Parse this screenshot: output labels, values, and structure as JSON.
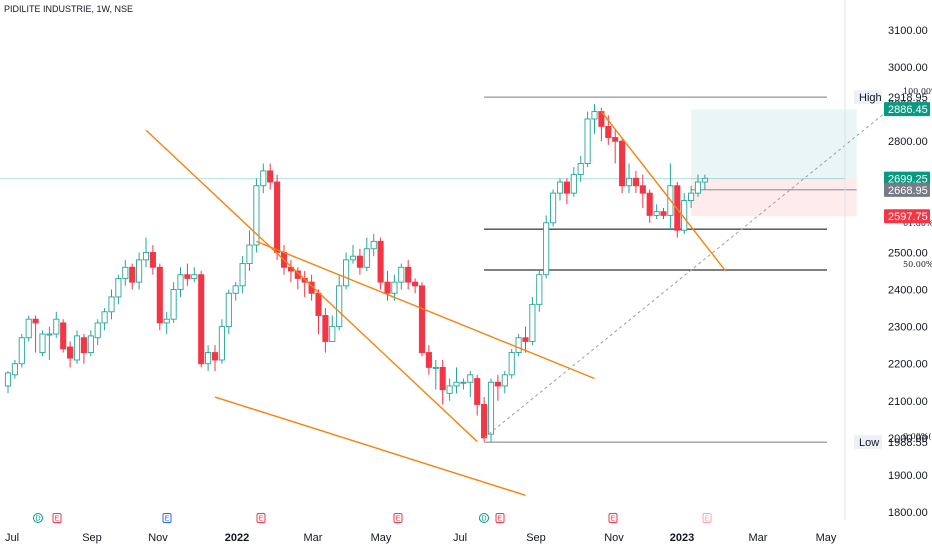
{
  "header": {
    "title": "PIDILITE INDUSTRIE, 1W, NSE"
  },
  "chart_data": {
    "type": "candlestick",
    "symbol": "PIDILITE INDUSTRIE",
    "timeframe": "1W",
    "exchange": "NSE",
    "x_tick_labels": [
      "Jul",
      "Sep",
      "Nov",
      "2022",
      "Mar",
      "May",
      "Jul",
      "Sep",
      "Nov",
      "2023",
      "Mar",
      "May"
    ],
    "y_tick_labels": [
      "3100.00",
      "3000.00",
      "2900.00",
      "2800.00",
      "2700.00",
      "2600.00",
      "2500.00",
      "2400.00",
      "2300.00",
      "2200.00",
      "2100.00",
      "2000.00",
      "1900.00",
      "1800.00"
    ],
    "ylim": [
      1780,
      3130
    ],
    "candles": [
      [
        2140,
        2175,
        2120,
        2180
      ],
      [
        2170,
        2200,
        2160,
        2210
      ],
      [
        2200,
        2270,
        2190,
        2280
      ],
      [
        2270,
        2320,
        2260,
        2330
      ],
      [
        2320,
        2310,
        2230,
        2330
      ],
      [
        2230,
        2280,
        2220,
        2290
      ],
      [
        2280,
        2280,
        2210,
        2300
      ],
      [
        2280,
        2320,
        2270,
        2340
      ],
      [
        2310,
        2240,
        2230,
        2320
      ],
      [
        2245,
        2215,
        2190,
        2260
      ],
      [
        2210,
        2275,
        2200,
        2290
      ],
      [
        2270,
        2230,
        2200,
        2280
      ],
      [
        2230,
        2275,
        2220,
        2290
      ],
      [
        2270,
        2310,
        2250,
        2320
      ],
      [
        2310,
        2340,
        2290,
        2350
      ],
      [
        2340,
        2380,
        2320,
        2400
      ],
      [
        2380,
        2430,
        2360,
        2440
      ],
      [
        2430,
        2460,
        2410,
        2480
      ],
      [
        2460,
        2420,
        2400,
        2470
      ],
      [
        2420,
        2480,
        2400,
        2500
      ],
      [
        2480,
        2500,
        2460,
        2540
      ],
      [
        2500,
        2460,
        2440,
        2520
      ],
      [
        2460,
        2310,
        2290,
        2470
      ],
      [
        2310,
        2320,
        2280,
        2340
      ],
      [
        2320,
        2400,
        2310,
        2420
      ],
      [
        2400,
        2440,
        2380,
        2460
      ],
      [
        2440,
        2430,
        2410,
        2470
      ],
      [
        2430,
        2440,
        2420,
        2460
      ],
      [
        2440,
        2200,
        2190,
        2450
      ],
      [
        2200,
        2230,
        2180,
        2250
      ],
      [
        2230,
        2210,
        2180,
        2250
      ],
      [
        2210,
        2300,
        2200,
        2320
      ],
      [
        2300,
        2390,
        2280,
        2400
      ],
      [
        2390,
        2410,
        2370,
        2420
      ],
      [
        2410,
        2470,
        2390,
        2490
      ],
      [
        2470,
        2520,
        2450,
        2560
      ],
      [
        2520,
        2680,
        2500,
        2700
      ],
      [
        2680,
        2720,
        2660,
        2740
      ],
      [
        2720,
        2690,
        2670,
        2740
      ],
      [
        2690,
        2500,
        2480,
        2710
      ],
      [
        2500,
        2460,
        2440,
        2520
      ],
      [
        2460,
        2450,
        2420,
        2480
      ],
      [
        2450,
        2430,
        2400,
        2460
      ],
      [
        2430,
        2420,
        2380,
        2450
      ],
      [
        2420,
        2390,
        2370,
        2440
      ],
      [
        2390,
        2330,
        2280,
        2400
      ],
      [
        2330,
        2260,
        2230,
        2350
      ],
      [
        2260,
        2300,
        2260,
        2330
      ],
      [
        2300,
        2410,
        2290,
        2440
      ],
      [
        2410,
        2480,
        2400,
        2500
      ],
      [
        2480,
        2490,
        2470,
        2520
      ],
      [
        2490,
        2460,
        2440,
        2510
      ],
      [
        2460,
        2510,
        2450,
        2540
      ],
      [
        2510,
        2530,
        2490,
        2550
      ],
      [
        2530,
        2420,
        2400,
        2540
      ],
      [
        2420,
        2390,
        2370,
        2450
      ],
      [
        2390,
        2420,
        2370,
        2440
      ],
      [
        2420,
        2460,
        2400,
        2470
      ],
      [
        2460,
        2420,
        2400,
        2480
      ],
      [
        2420,
        2410,
        2390,
        2430
      ],
      [
        2410,
        2230,
        2220,
        2420
      ],
      [
        2230,
        2190,
        2170,
        2250
      ],
      [
        2190,
        2190,
        2130,
        2210
      ],
      [
        2190,
        2130,
        2090,
        2210
      ],
      [
        2120,
        2140,
        2100,
        2160
      ],
      [
        2140,
        2150,
        2120,
        2190
      ],
      [
        2150,
        2150,
        2130,
        2160
      ],
      [
        2150,
        2170,
        2110,
        2180
      ],
      [
        2160,
        2090,
        2060,
        2170
      ],
      [
        2090,
        2000,
        1990,
        2110
      ],
      [
        2010,
        2150,
        1990,
        2160
      ],
      [
        2150,
        2140,
        2100,
        2170
      ],
      [
        2140,
        2170,
        2120,
        2180
      ],
      [
        2170,
        2230,
        2160,
        2240
      ],
      [
        2230,
        2270,
        2220,
        2280
      ],
      [
        2270,
        2260,
        2230,
        2300
      ],
      [
        2260,
        2360,
        2250,
        2380
      ],
      [
        2360,
        2440,
        2340,
        2450
      ],
      [
        2440,
        2580,
        2430,
        2600
      ],
      [
        2580,
        2660,
        2570,
        2670
      ],
      [
        2660,
        2690,
        2640,
        2700
      ],
      [
        2690,
        2660,
        2630,
        2700
      ],
      [
        2660,
        2710,
        2650,
        2730
      ],
      [
        2710,
        2740,
        2690,
        2760
      ],
      [
        2740,
        2860,
        2730,
        2880
      ],
      [
        2860,
        2880,
        2820,
        2900
      ],
      [
        2880,
        2840,
        2800,
        2890
      ],
      [
        2840,
        2810,
        2790,
        2870
      ],
      [
        2810,
        2800,
        2740,
        2830
      ],
      [
        2800,
        2680,
        2660,
        2810
      ],
      [
        2680,
        2700,
        2660,
        2740
      ],
      [
        2700,
        2680,
        2660,
        2720
      ],
      [
        2680,
        2660,
        2620,
        2710
      ],
      [
        2660,
        2600,
        2580,
        2670
      ],
      [
        2600,
        2610,
        2590,
        2630
      ],
      [
        2610,
        2600,
        2590,
        2620
      ],
      [
        2600,
        2680,
        2560,
        2740
      ],
      [
        2680,
        2560,
        2540,
        2690
      ],
      [
        2560,
        2640,
        2550,
        2660
      ],
      [
        2640,
        2660,
        2620,
        2680
      ],
      [
        2660,
        2690,
        2650,
        2710
      ],
      [
        2690,
        2700,
        2670,
        2710
      ]
    ],
    "trendlines": [
      {
        "from": [
          20,
          2830
        ],
        "to": [
          68,
          1990
        ],
        "color": "#f7820f"
      },
      {
        "from": [
          36,
          2530
        ],
        "to": [
          85,
          2160
        ],
        "color": "#f7820f"
      },
      {
        "from": [
          86,
          2880
        ],
        "to": [
          104,
          2450
        ],
        "color": "#f7820f"
      },
      {
        "from": [
          30,
          2110
        ],
        "to": [
          75,
          1845
        ],
        "color": "#f7820f"
      },
      {
        "from": [
          69,
          2000
        ],
        "to": [
          130,
          2920
        ],
        "color": "#9aa0a6",
        "dashed": true
      }
    ],
    "fib_levels": [
      {
        "label": "100.00%(2918.95)",
        "value": 2918.95
      },
      {
        "label": "61.80%(2563.10)",
        "value": 2563.1
      },
      {
        "label": "50.00%(2452.60)",
        "value": 2452.6
      },
      {
        "label": "0.00%(1988.55)",
        "value": 1988.55
      }
    ],
    "fib_range_bars": [
      69,
      130
    ],
    "position": {
      "target_zone": {
        "from": 2699.25,
        "to": 2886.45,
        "color": "#26a69a"
      },
      "stop_zone": {
        "from": 2597.75,
        "to": 2699.25,
        "color": "#f23645"
      },
      "bars": [
        99,
        123
      ]
    },
    "price_badges": [
      {
        "label": "High",
        "value": "2918.95",
        "price": 2918.95,
        "style": "label"
      },
      {
        "value": "2886.45",
        "price": 2886.45,
        "bg": "#089981",
        "fg": "#ffffff"
      },
      {
        "value": "2699.25",
        "price": 2699.25,
        "bg": "#089981",
        "fg": "#ffffff"
      },
      {
        "value": "2668.95",
        "price": 2668.95,
        "bg": "#787b86",
        "fg": "#ffffff"
      },
      {
        "value": "2597.75",
        "price": 2597.75,
        "bg": "#f23645",
        "fg": "#ffffff"
      },
      {
        "label": "Low",
        "value": "1988.55",
        "price": 1988.55,
        "style": "label"
      }
    ],
    "events": [
      {
        "kind": "D",
        "x_label_index": 0
      },
      {
        "kind": "E",
        "x_label_index": 0
      },
      {
        "kind": "E",
        "x_label_index": 2
      },
      {
        "kind": "E",
        "x_label_index": 3
      },
      {
        "kind": "E",
        "x_label_index": 5
      },
      {
        "kind": "D",
        "x_label_index": 6
      },
      {
        "kind": "E",
        "x_label_index": 6
      },
      {
        "kind": "E",
        "x_label_index": 8
      },
      {
        "kind": "E",
        "x_label_index": 9
      }
    ],
    "colors": {
      "up": "#26a69a",
      "down": "#f23645",
      "trend": "#f7820f",
      "fib": "#000000",
      "grid": "#f0f3fa",
      "axis_text": "#131722"
    }
  }
}
